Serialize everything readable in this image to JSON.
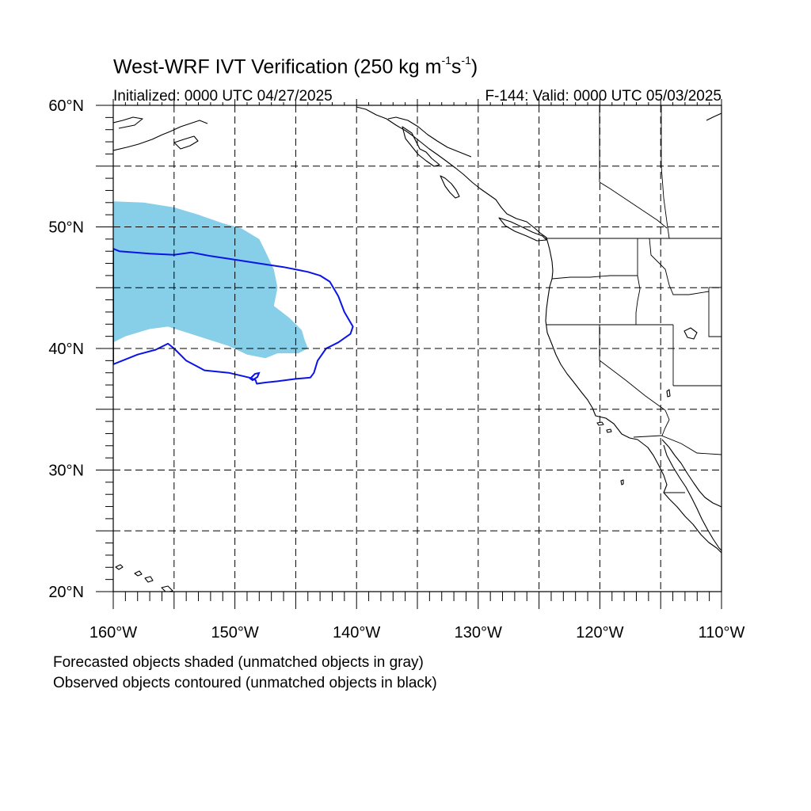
{
  "title": {
    "main": "West-WRF IVT Verification (250 kg m",
    "sup1": "-1",
    "mid": "s",
    "sup2": "-1",
    "close": ")"
  },
  "subtitle": {
    "initialized": "Initialized: 0000 UTC 04/27/2025",
    "valid": "F-144: Valid: 0000 UTC 05/03/2025"
  },
  "footnotes": {
    "forecast": "Forecasted objects shaded (unmatched objects in gray)",
    "observed": "Observed objects contoured (unmatched objects in black)"
  },
  "colors": {
    "forecast_fill": "#87cee8",
    "observed_contour": "#0a14e6",
    "coast": "#000000",
    "grid": "#000000"
  },
  "map": {
    "lon_range": [
      -160,
      -110
    ],
    "lat_range": [
      20,
      60
    ],
    "grid_lines": "dashed every 5 degrees",
    "lat_labels": [
      "20°N",
      "30°N",
      "40°N",
      "50°N",
      "60°N"
    ],
    "lon_labels": [
      "160°W",
      "150°W",
      "140°W",
      "130°W",
      "120°W",
      "110°W"
    ],
    "forecast_object": {
      "type": "shaded",
      "polygon_lonlat": [
        [
          -160,
          52.1
        ],
        [
          -157.5,
          52.0
        ],
        [
          -155,
          51.6
        ],
        [
          -153,
          51.0
        ],
        [
          -151,
          50.3
        ],
        [
          -149.5,
          49.9
        ],
        [
          -148,
          49.0
        ],
        [
          -147.5,
          48.0
        ],
        [
          -146.8,
          46.5
        ],
        [
          -146.5,
          45.0
        ],
        [
          -146.8,
          43.5
        ],
        [
          -145.5,
          42.5
        ],
        [
          -144.5,
          41.5
        ],
        [
          -144.3,
          40.8
        ],
        [
          -144,
          40.0
        ],
        [
          -144.8,
          39.6
        ],
        [
          -146.5,
          39.6
        ],
        [
          -147.5,
          39.2
        ],
        [
          -149,
          39.5
        ],
        [
          -150.5,
          40.2
        ],
        [
          -153,
          41.0
        ],
        [
          -155.5,
          41.8
        ],
        [
          -157,
          41.6
        ],
        [
          -159,
          41.0
        ],
        [
          -160,
          40.5
        ]
      ]
    },
    "observed_object": {
      "type": "contour",
      "polygon_lonlat": [
        [
          -160,
          48.2
        ],
        [
          -159.5,
          48.0
        ],
        [
          -157,
          47.8
        ],
        [
          -155,
          47.7
        ],
        [
          -153.6,
          47.9
        ],
        [
          -152,
          47.6
        ],
        [
          -150,
          47.3
        ],
        [
          -148,
          47.0
        ],
        [
          -146,
          46.7
        ],
        [
          -144,
          46.3
        ],
        [
          -143,
          46.0
        ],
        [
          -142.2,
          45.5
        ],
        [
          -141.5,
          44.3
        ],
        [
          -141,
          43.0
        ],
        [
          -140.3,
          41.8
        ],
        [
          -140.5,
          41.2
        ],
        [
          -141.5,
          40.5
        ],
        [
          -142.5,
          40.0
        ],
        [
          -143.2,
          39.0
        ],
        [
          -143.5,
          38.0
        ],
        [
          -143.8,
          37.6
        ],
        [
          -145,
          37.5
        ],
        [
          -146.5,
          37.3
        ],
        [
          -147.5,
          37.2
        ],
        [
          -148.2,
          37.1
        ],
        [
          -148.3,
          37.4
        ],
        [
          -148.8,
          37.6
        ],
        [
          -150.5,
          38.0
        ],
        [
          -152.5,
          38.2
        ],
        [
          -154,
          39.0
        ],
        [
          -155,
          40.0
        ],
        [
          -155.5,
          40.4
        ],
        [
          -156.5,
          39.9
        ],
        [
          -158,
          39.5
        ],
        [
          -160,
          38.7
        ]
      ]
    }
  }
}
